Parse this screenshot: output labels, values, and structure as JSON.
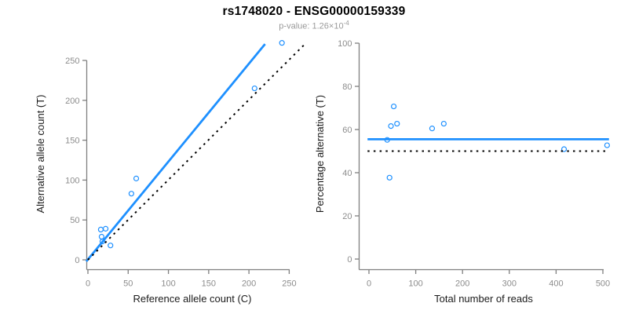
{
  "header": {
    "pvalue_prefix": "p-value: 1.26×10",
    "pvalue_exponent": "-4"
  },
  "colors": {
    "accent_blue": "#1E90FF",
    "line_black": "#000000",
    "axis_gray": "#7f7f7f",
    "tick_label_gray": "#8c8c8c",
    "axis_title_color": "#1a1a1a",
    "title_color": "#000000",
    "subtitle_gray": "#9a9a9a",
    "background": "#ffffff"
  },
  "chart_data": {
    "figure_title": "rs1748020 - ENSG00000159339",
    "figure_subtitle": "p-value: 1.26×10^-4",
    "plots": [
      {
        "id": "allele-counts",
        "type": "scatter",
        "xlabel": "Reference allele count (C)",
        "ylabel": "Alternative allele count (T)",
        "xlim": [
          0,
          258
        ],
        "ylim": [
          0,
          275
        ],
        "xticks": [
          0,
          50,
          100,
          150,
          200,
          250
        ],
        "yticks": [
          0,
          50,
          100,
          150,
          200,
          250
        ],
        "grid": false,
        "legend": "none",
        "points": [
          [
            16,
            38
          ],
          [
            22,
            39
          ],
          [
            17,
            29
          ],
          [
            18,
            23
          ],
          [
            28,
            18
          ],
          [
            54,
            83
          ],
          [
            60,
            102
          ],
          [
            207,
            215
          ],
          [
            241,
            272
          ]
        ],
        "lines": [
          {
            "name": "fit-line",
            "style": "solid",
            "color": "#1E90FF",
            "points": [
              [
                -2,
                -2
              ],
              [
                220,
                270.5
              ]
            ]
          },
          {
            "name": "identity-line",
            "style": "dotted",
            "color": "#000000",
            "points": [
              [
                0,
                0
              ],
              [
                268,
                269
              ]
            ]
          }
        ]
      },
      {
        "id": "percentage-vs-reads",
        "type": "scatter",
        "xlabel": "Total number of reads",
        "ylabel": "Percentage alternative (T)",
        "xlim": [
          0,
          515
        ],
        "ylim": [
          0,
          100
        ],
        "xticks": [
          0,
          100,
          200,
          300,
          400,
          500
        ],
        "yticks": [
          0,
          20,
          40,
          60,
          80,
          100
        ],
        "grid": false,
        "legend": "none",
        "points": [
          [
            53,
            70.7
          ],
          [
            47,
            61.6
          ],
          [
            60,
            62.7
          ],
          [
            135,
            60.5
          ],
          [
            160,
            62.7
          ],
          [
            39,
            55.2
          ],
          [
            44,
            37.7
          ],
          [
            417,
            50.9
          ],
          [
            509,
            52.7
          ]
        ],
        "lines": [
          {
            "name": "fit-line",
            "style": "solid",
            "color": "#1E90FF",
            "points": [
              [
                -3,
                55.5
              ],
              [
                513,
                55.5
              ]
            ]
          },
          {
            "name": "null-line",
            "style": "dotted",
            "color": "#000000",
            "points": [
              [
                -3,
                50
              ],
              [
                513,
                50
              ]
            ]
          }
        ]
      }
    ]
  }
}
